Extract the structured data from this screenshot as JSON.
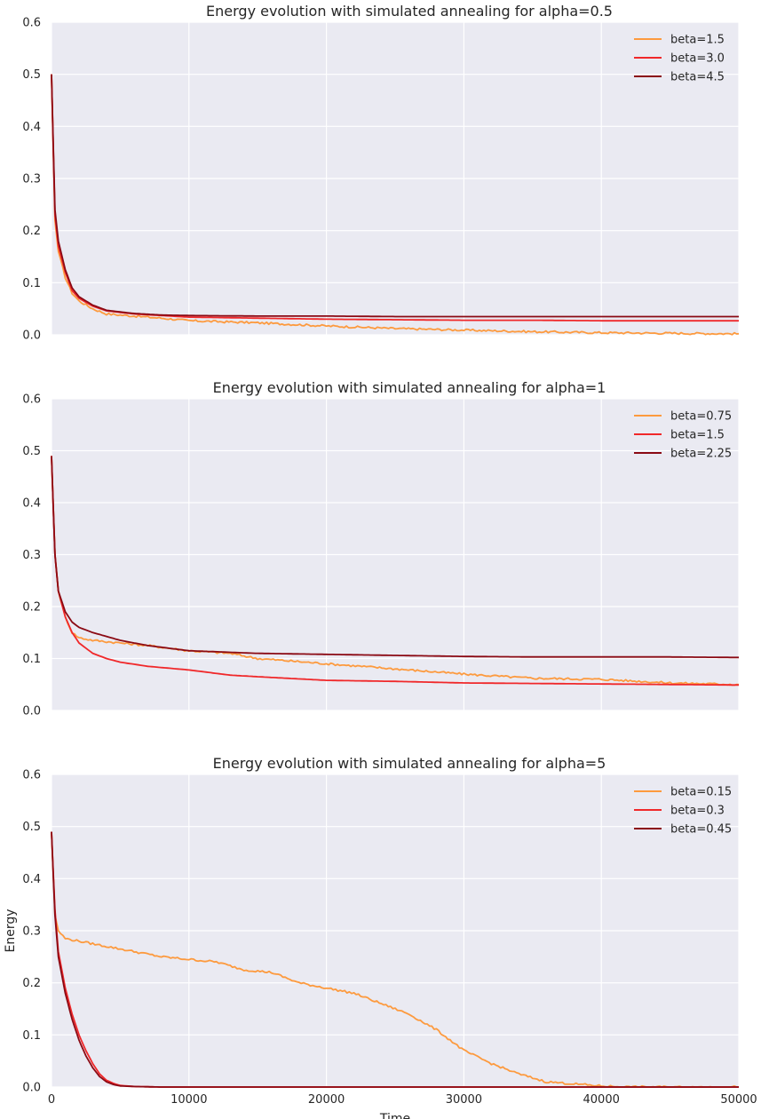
{
  "chart_data": [
    {
      "type": "line",
      "title": "Energy evolution with simulated annealing for alpha=0.5",
      "xlim": [
        0,
        50000
      ],
      "ylim": [
        0,
        0.6
      ],
      "yticks": [
        "0.0",
        "0.1",
        "0.2",
        "0.3",
        "0.4",
        "0.5",
        "0.6"
      ],
      "grid": true,
      "legend_position": "top-right",
      "series": [
        {
          "name": "beta=1.5",
          "color": "#fd9a3e",
          "x": [
            0,
            250,
            500,
            1000,
            1500,
            2000,
            3000,
            4000,
            6000,
            8000,
            10000,
            15000,
            20000,
            25000,
            30000,
            35000,
            40000,
            45000,
            50000
          ],
          "y": [
            0.5,
            0.22,
            0.16,
            0.11,
            0.08,
            0.065,
            0.05,
            0.04,
            0.036,
            0.032,
            0.027,
            0.023,
            0.017,
            0.012,
            0.009,
            0.006,
            0.004,
            0.003,
            0.002
          ]
        },
        {
          "name": "beta=3.0",
          "color": "#f0282a",
          "x": [
            0,
            250,
            500,
            1000,
            1500,
            2000,
            3000,
            4000,
            6000,
            8000,
            10000,
            15000,
            20000,
            25000,
            30000,
            35000,
            40000,
            45000,
            50000
          ],
          "y": [
            0.5,
            0.23,
            0.17,
            0.12,
            0.085,
            0.07,
            0.055,
            0.046,
            0.04,
            0.037,
            0.034,
            0.032,
            0.03,
            0.029,
            0.028,
            0.028,
            0.027,
            0.027,
            0.027
          ]
        },
        {
          "name": "beta=4.5",
          "color": "#8b0a14",
          "x": [
            0,
            250,
            500,
            1000,
            1500,
            2000,
            3000,
            4000,
            6000,
            8000,
            10000,
            15000,
            20000,
            25000,
            30000,
            35000,
            40000,
            45000,
            50000
          ],
          "y": [
            0.5,
            0.24,
            0.18,
            0.125,
            0.09,
            0.073,
            0.057,
            0.047,
            0.041,
            0.038,
            0.037,
            0.036,
            0.036,
            0.035,
            0.035,
            0.035,
            0.035,
            0.035,
            0.035
          ]
        }
      ]
    },
    {
      "type": "line",
      "title": "Energy evolution with simulated annealing for alpha=1",
      "xlim": [
        0,
        50000
      ],
      "ylim": [
        0,
        0.6
      ],
      "yticks": [
        "0.0",
        "0.1",
        "0.2",
        "0.3",
        "0.4",
        "0.5",
        "0.6"
      ],
      "grid": true,
      "legend_position": "top-right",
      "series": [
        {
          "name": "beta=0.75",
          "color": "#fd9a3e",
          "x": [
            0,
            250,
            500,
            1000,
            1500,
            2000,
            3000,
            5000,
            7000,
            10000,
            13000,
            15000,
            20000,
            25000,
            30000,
            35000,
            40000,
            45000,
            50000
          ],
          "y": [
            0.49,
            0.3,
            0.23,
            0.18,
            0.15,
            0.14,
            0.135,
            0.13,
            0.125,
            0.115,
            0.11,
            0.1,
            0.09,
            0.08,
            0.07,
            0.062,
            0.06,
            0.053,
            0.05
          ]
        },
        {
          "name": "beta=1.5",
          "color": "#f0282a",
          "x": [
            0,
            250,
            500,
            1000,
            1500,
            2000,
            3000,
            4000,
            5000,
            7000,
            10000,
            13000,
            15000,
            20000,
            25000,
            30000,
            35000,
            40000,
            45000,
            50000
          ],
          "y": [
            0.49,
            0.3,
            0.23,
            0.18,
            0.15,
            0.13,
            0.11,
            0.1,
            0.093,
            0.085,
            0.078,
            0.068,
            0.065,
            0.058,
            0.056,
            0.053,
            0.052,
            0.051,
            0.05,
            0.049
          ]
        },
        {
          "name": "beta=2.25",
          "color": "#8b0a14",
          "x": [
            0,
            250,
            500,
            1000,
            1500,
            2000,
            3000,
            5000,
            7000,
            10000,
            13000,
            15000,
            20000,
            25000,
            30000,
            35000,
            40000,
            45000,
            50000
          ],
          "y": [
            0.49,
            0.3,
            0.23,
            0.19,
            0.17,
            0.16,
            0.15,
            0.135,
            0.125,
            0.115,
            0.112,
            0.11,
            0.108,
            0.106,
            0.104,
            0.103,
            0.103,
            0.103,
            0.102
          ]
        }
      ]
    },
    {
      "type": "line",
      "title": "Energy evolution with simulated annealing for alpha=5",
      "xlabel": "Time",
      "ylabel": "Energy",
      "xlim": [
        0,
        50000
      ],
      "ylim": [
        0,
        0.6
      ],
      "xticks": [
        "0",
        "10000",
        "20000",
        "30000",
        "40000",
        "50000"
      ],
      "yticks": [
        "0.0",
        "0.1",
        "0.2",
        "0.3",
        "0.4",
        "0.5",
        "0.6"
      ],
      "grid": true,
      "legend_position": "top-right",
      "series": [
        {
          "name": "beta=0.15",
          "color": "#fd9a3e",
          "x": [
            0,
            250,
            500,
            1000,
            2000,
            4000,
            6000,
            8000,
            10000,
            12000,
            14000,
            16000,
            18000,
            20000,
            22000,
            24000,
            26000,
            28000,
            30000,
            32000,
            34000,
            36000,
            38000,
            40000,
            42000,
            50000
          ],
          "y": [
            0.49,
            0.33,
            0.3,
            0.285,
            0.28,
            0.27,
            0.26,
            0.25,
            0.245,
            0.24,
            0.225,
            0.22,
            0.2,
            0.19,
            0.18,
            0.16,
            0.14,
            0.11,
            0.07,
            0.045,
            0.025,
            0.01,
            0.006,
            0.002,
            0.0,
            0.0
          ]
        },
        {
          "name": "beta=0.3",
          "color": "#f0282a",
          "x": [
            0,
            250,
            500,
            1000,
            1500,
            2000,
            2500,
            3000,
            3500,
            4000,
            4500,
            5000,
            6000,
            8000,
            50000
          ],
          "y": [
            0.49,
            0.34,
            0.26,
            0.19,
            0.14,
            0.1,
            0.07,
            0.045,
            0.025,
            0.013,
            0.007,
            0.003,
            0.001,
            0.0,
            0.0
          ]
        },
        {
          "name": "beta=0.45",
          "color": "#8b0a14",
          "x": [
            0,
            250,
            500,
            1000,
            1500,
            2000,
            2500,
            3000,
            3500,
            4000,
            4500,
            5000,
            6000,
            8000,
            50000
          ],
          "y": [
            0.49,
            0.33,
            0.25,
            0.18,
            0.13,
            0.09,
            0.06,
            0.037,
            0.02,
            0.01,
            0.005,
            0.002,
            0.001,
            0.0,
            0.0
          ]
        }
      ]
    }
  ]
}
